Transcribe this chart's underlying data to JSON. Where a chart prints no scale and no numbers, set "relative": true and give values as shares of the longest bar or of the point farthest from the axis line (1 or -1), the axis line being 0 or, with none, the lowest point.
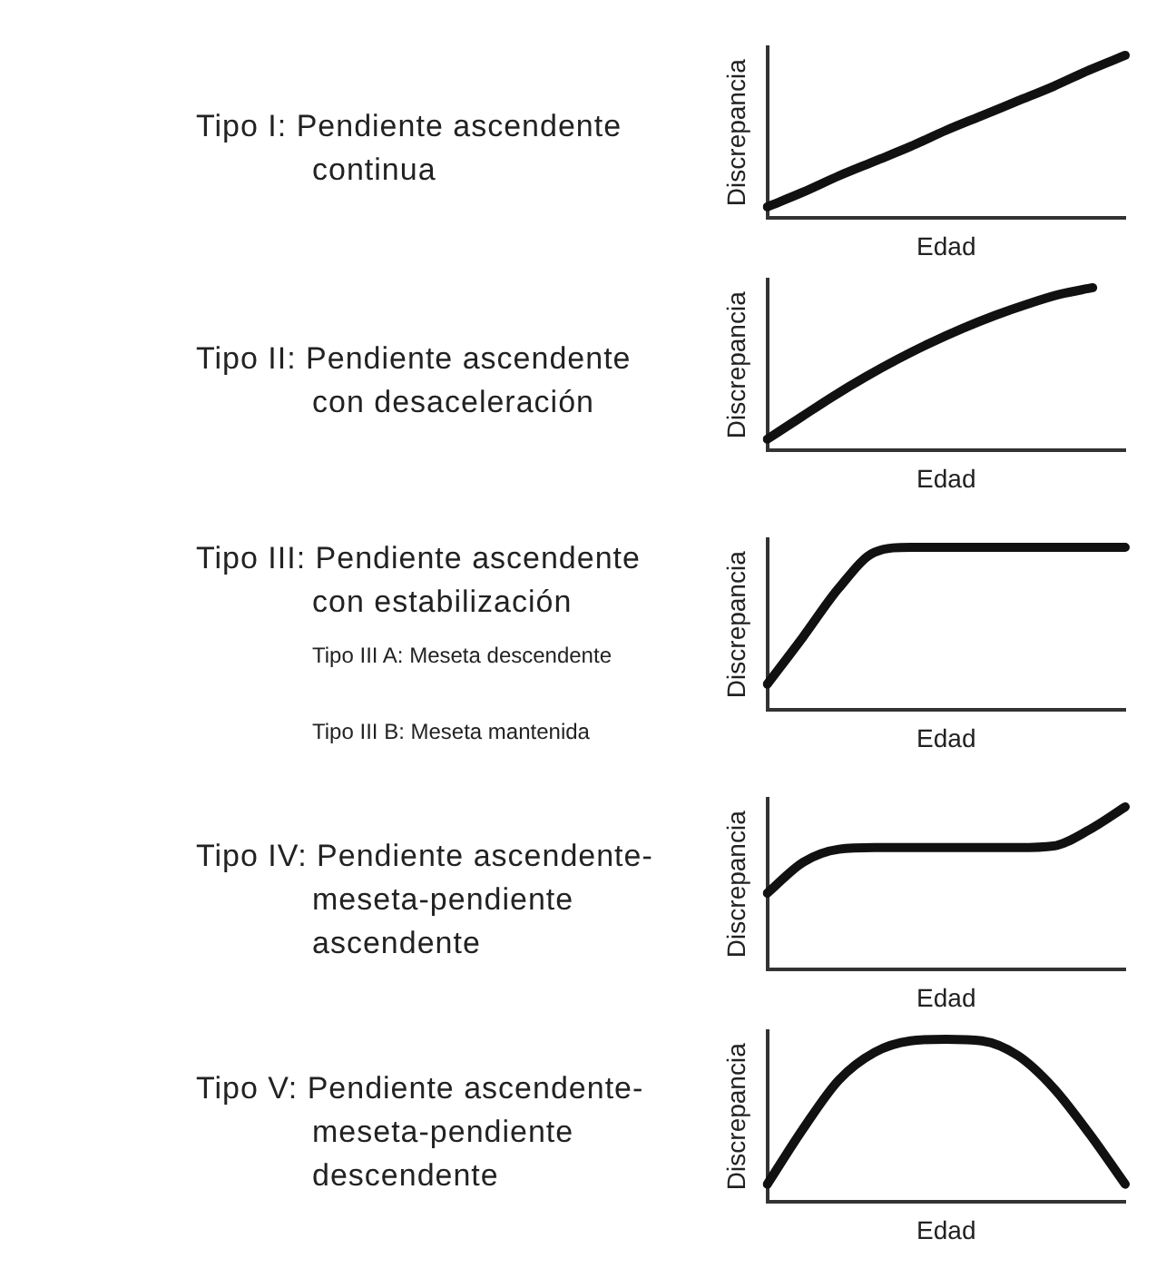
{
  "chart_data": [
    {
      "type": "line",
      "title": "Tipo I: Pendiente ascendente continua",
      "xlabel": "Edad",
      "ylabel": "Discrepancia",
      "relative": true,
      "categories": [
        null,
        null,
        null,
        null,
        null,
        null,
        null,
        null,
        null,
        null,
        null
      ],
      "series": [
        {
          "color": "#111111",
          "values": [
            0.07,
            0.16,
            0.26,
            0.35,
            0.44,
            0.54,
            0.63,
            0.72,
            0.81,
            0.91,
            1
          ]
        }
      ]
    },
    {
      "type": "line",
      "title": "Tipo II: Pendiente ascendente con desaceleración",
      "xlabel": "Edad",
      "ylabel": "Discrepancia",
      "relative": true,
      "categories": [
        null,
        null,
        null,
        null,
        null,
        null,
        null,
        null,
        null,
        null,
        null,
        null
      ],
      "series": [
        {
          "color": "#111111",
          "values": [
            0.07,
            0.2,
            0.33,
            0.45,
            0.56,
            0.66,
            0.75,
            0.83,
            0.9,
            0.96,
            1,
            null
          ]
        }
      ]
    },
    {
      "type": "line",
      "title": "Tipo III: Pendiente ascendente con estabilización",
      "xlabel": "Edad",
      "ylabel": "Discrepancia",
      "relative": true,
      "annotations": [
        "Tipo III A: Meseta descendente",
        "Tipo III B: Meseta mantenida"
      ],
      "categories": [
        null,
        null,
        null,
        null,
        null,
        null,
        null,
        null,
        null,
        null,
        null
      ],
      "series": [
        {
          "color": "#111111",
          "values": [
            0.16,
            0.45,
            0.75,
            0.97,
            1,
            1,
            1,
            1,
            1,
            1,
            1
          ]
        }
      ]
    },
    {
      "type": "line",
      "title": "Tipo IV: Pendiente ascendente-meseta-pendiente ascendente",
      "xlabel": "Edad",
      "ylabel": "Discrepancia",
      "relative": true,
      "categories": [
        null,
        null,
        null,
        null,
        null,
        null,
        null,
        null,
        null,
        null,
        null
      ],
      "series": [
        {
          "color": "#111111",
          "values": [
            0.47,
            0.66,
            0.74,
            0.75,
            0.75,
            0.75,
            0.75,
            0.75,
            0.76,
            0.86,
            1
          ]
        }
      ]
    },
    {
      "type": "line",
      "title": "Tipo V: Pendiente ascendente-meseta-pendiente descendente",
      "xlabel": "Edad",
      "ylabel": "Discrepancia",
      "relative": true,
      "categories": [
        null,
        null,
        null,
        null,
        null,
        null,
        null,
        null,
        null,
        null,
        null
      ],
      "series": [
        {
          "color": "#111111",
          "values": [
            0.11,
            0.45,
            0.75,
            0.92,
            0.99,
            1,
            0.99,
            0.9,
            0.7,
            0.42,
            0.11
          ]
        }
      ]
    }
  ]
}
